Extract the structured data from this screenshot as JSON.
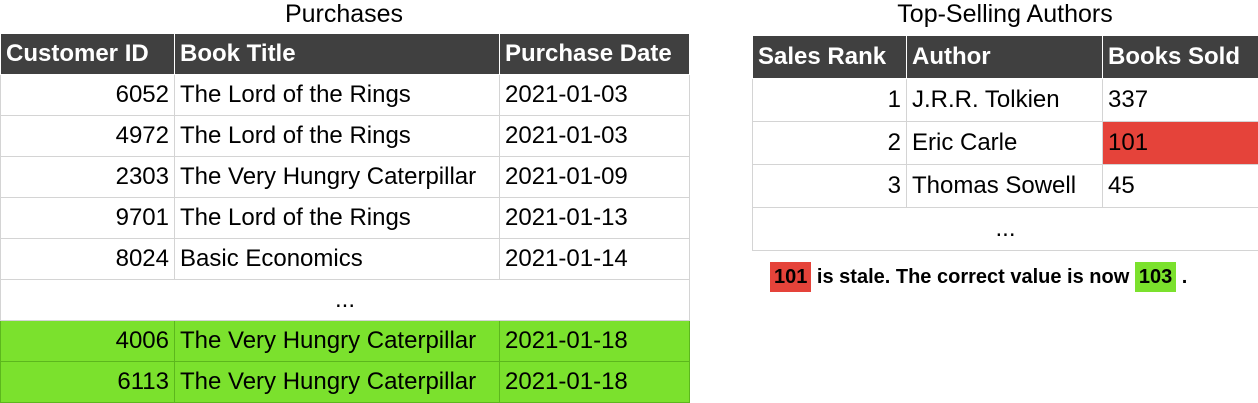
{
  "purchases": {
    "title": "Purchases",
    "headers": [
      "Customer ID",
      "Book Title",
      "Purchase Date"
    ],
    "rows": [
      {
        "id": "6052",
        "title": "The Lord of the Rings",
        "date": "2021-01-03"
      },
      {
        "id": "4972",
        "title": "The Lord of the Rings",
        "date": "2021-01-03"
      },
      {
        "id": "2303",
        "title": "The Very Hungry Caterpillar",
        "date": "2021-01-09"
      },
      {
        "id": "9701",
        "title": "The Lord of the Rings",
        "date": "2021-01-13"
      },
      {
        "id": "8024",
        "title": "Basic Economics",
        "date": "2021-01-14"
      }
    ],
    "ellipsis": "...",
    "new_rows": [
      {
        "id": "4006",
        "title": "The Very Hungry Caterpillar",
        "date": "2021-01-18"
      },
      {
        "id": "6113",
        "title": "The Very Hungry Caterpillar",
        "date": "2021-01-18"
      }
    ]
  },
  "authors": {
    "title": "Top-Selling Authors",
    "headers": [
      "Sales Rank",
      "Author",
      "Books Sold"
    ],
    "rows": [
      {
        "rank": "1",
        "author": "J.R.R. Tolkien",
        "sold": "337"
      },
      {
        "rank": "2",
        "author": "Eric Carle",
        "sold": "101"
      },
      {
        "rank": "3",
        "author": "Thomas Sowell",
        "sold": "45"
      }
    ],
    "ellipsis": "..."
  },
  "note": {
    "stale_value": "101",
    "middle_text": " is stale. The correct value is now ",
    "correct_value": "103",
    "end_text": " ."
  },
  "colors": {
    "header_bg": "#404040",
    "stale_red": "#e5433a",
    "update_green": "#7be12d"
  }
}
